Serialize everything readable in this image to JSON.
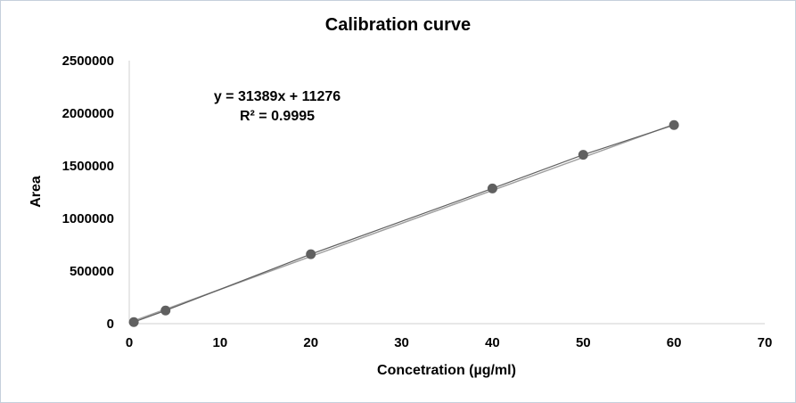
{
  "chart_data": {
    "type": "scatter",
    "title": "Calibration curve",
    "xlabel": "Concetration (µg/ml)",
    "ylabel": "Area",
    "xlim": [
      0,
      70
    ],
    "ylim": [
      0,
      2500000
    ],
    "x_ticks": [
      0,
      10,
      20,
      30,
      40,
      50,
      60,
      70
    ],
    "y_ticks": [
      0,
      500000,
      1000000,
      1500000,
      2000000,
      2500000
    ],
    "grid": false,
    "legend": "none",
    "series": [
      {
        "x": [
          0.5,
          4,
          20,
          40,
          50,
          60
        ],
        "y": [
          15000,
          125000,
          660000,
          1285000,
          1605000,
          1888000
        ]
      }
    ],
    "trendline": {
      "slope": 31389,
      "intercept": 11276,
      "equation": "y = 31389x + 11276",
      "r_squared": "R² = 0.9995"
    },
    "colors": {
      "marker": "#606060",
      "line": "#606060",
      "trendline": "#a0a0a0",
      "axis": "#d0d0d0",
      "frame": "#c6d0dc"
    }
  }
}
